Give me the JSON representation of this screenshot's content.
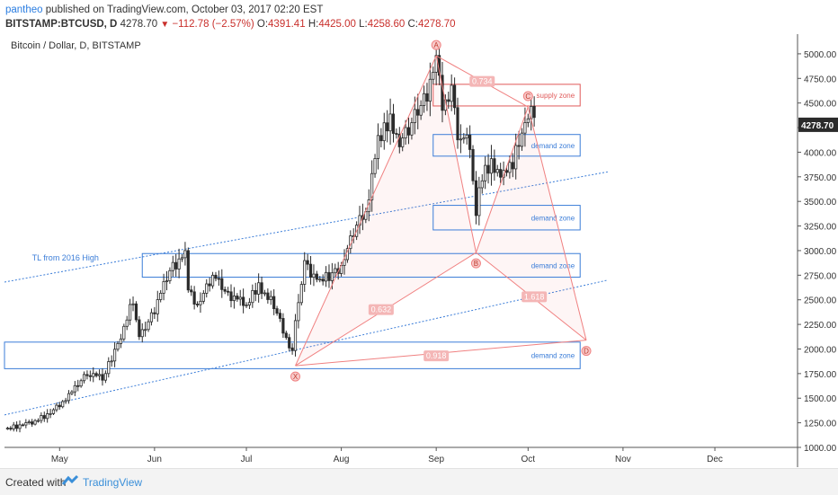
{
  "header": {
    "user": "pantheo",
    "published": "published on TradingView.com, October 03, 2017 02:20 EST",
    "symbol": "BITSTAMP:BTCUSD, D",
    "last": "4278.70",
    "change": "−112.78 (−2.57%)",
    "open_label": "O:",
    "open": "4391.41",
    "high_label": "H:",
    "high": "4425.00",
    "low_label": "L:",
    "low": "4258.60",
    "close_label": "C:",
    "close": "4278.70"
  },
  "footer": {
    "created_with": "Created with",
    "brand": "TradingView"
  },
  "colors": {
    "up": "#ffffff",
    "down": "#2b2b2b",
    "zone_demand": "#3b7dd8",
    "zone_supply": "#e05a5a",
    "pattern": "#f08080",
    "trendline": "#3b7dd8",
    "price_tag_bg": "#2b2b2b"
  },
  "chart_data": {
    "type": "candlestick",
    "title": "Bitcoin / Dollar, D, BITSTAMP",
    "x_start": "2017-04-13",
    "x_end": "2017-12-28",
    "ylim": [
      1000,
      5200
    ],
    "y_ticks": [
      1000,
      1250,
      1500,
      1750,
      2000,
      2250,
      2500,
      2750,
      3000,
      3250,
      3500,
      3750,
      4000,
      4250,
      4500,
      4750,
      5000
    ],
    "y_tick_labels": [
      "1000.00",
      "1250.00",
      "1500.00",
      "1750.00",
      "2000.00",
      "2250.00",
      "2500.00",
      "2750.00",
      "3000.00",
      "3250.00",
      "3500.00",
      "3750.00",
      "4000.00",
      "4250.00",
      "4500.00",
      "4750.00",
      "5000.00"
    ],
    "x_ticks": [
      {
        "date": "2017-05-01",
        "label": "May"
      },
      {
        "date": "2017-06-01",
        "label": "Jun"
      },
      {
        "date": "2017-07-01",
        "label": "Jul"
      },
      {
        "date": "2017-08-01",
        "label": "Aug"
      },
      {
        "date": "2017-09-01",
        "label": "Sep"
      },
      {
        "date": "2017-10-01",
        "label": "Oct"
      },
      {
        "date": "2017-11-01",
        "label": "Nov"
      },
      {
        "date": "2017-12-01",
        "label": "Dec"
      }
    ],
    "last_price_label": "4278.70",
    "last_price": 4278.7,
    "close_path": [
      [
        "2017-04-13",
        1190
      ],
      [
        "2017-04-20",
        1230
      ],
      [
        "2017-04-27",
        1330
      ],
      [
        "2017-05-04",
        1520
      ],
      [
        "2017-05-10",
        1760
      ],
      [
        "2017-05-15",
        1700
      ],
      [
        "2017-05-20",
        2050
      ],
      [
        "2017-05-25",
        2500
      ],
      [
        "2017-05-27",
        2100
      ],
      [
        "2017-06-01",
        2400
      ],
      [
        "2017-06-06",
        2800
      ],
      [
        "2017-06-11",
        2950
      ],
      [
        "2017-06-12",
        2600
      ],
      [
        "2017-06-15",
        2450
      ],
      [
        "2017-06-20",
        2750
      ],
      [
        "2017-06-25",
        2550
      ],
      [
        "2017-07-01",
        2450
      ],
      [
        "2017-07-05",
        2650
      ],
      [
        "2017-07-10",
        2450
      ],
      [
        "2017-07-16",
        1950
      ],
      [
        "2017-07-17",
        2250
      ],
      [
        "2017-07-20",
        2850
      ],
      [
        "2017-07-24",
        2700
      ],
      [
        "2017-07-29",
        2750
      ],
      [
        "2017-08-01",
        2850
      ],
      [
        "2017-08-05",
        3200
      ],
      [
        "2017-08-09",
        3400
      ],
      [
        "2017-08-13",
        4100
      ],
      [
        "2017-08-17",
        4350
      ],
      [
        "2017-08-20",
        4100
      ],
      [
        "2017-08-24",
        4300
      ],
      [
        "2017-08-29",
        4600
      ],
      [
        "2017-09-01",
        4900
      ],
      [
        "2017-09-03",
        4500
      ],
      [
        "2017-09-06",
        4600
      ],
      [
        "2017-09-08",
        4200
      ],
      [
        "2017-09-12",
        4100
      ],
      [
        "2017-09-14",
        3300
      ],
      [
        "2017-09-15",
        3700
      ],
      [
        "2017-09-19",
        3900
      ],
      [
        "2017-09-23",
        3750
      ],
      [
        "2017-09-26",
        3900
      ],
      [
        "2017-09-29",
        4200
      ],
      [
        "2017-10-02",
        4391
      ],
      [
        "2017-10-03",
        4278.7
      ]
    ],
    "zones": [
      {
        "label": "supply zone",
        "kind": "supply",
        "from": "2017-08-31",
        "to": "2017-10-18",
        "low": 4470,
        "high": 4690
      },
      {
        "label": "demand zone",
        "kind": "demand",
        "from": "2017-08-31",
        "to": "2017-10-18",
        "low": 3960,
        "high": 4180
      },
      {
        "label": "demand zone",
        "kind": "demand",
        "from": "2017-08-31",
        "to": "2017-10-18",
        "low": 3210,
        "high": 3460
      },
      {
        "label": "demand zone",
        "kind": "demand",
        "from": "2017-05-28",
        "to": "2017-10-18",
        "low": 2730,
        "high": 2970
      },
      {
        "label": "demand zone",
        "kind": "demand",
        "from": "2017-04-13",
        "to": "2017-10-18",
        "low": 1800,
        "high": 2070
      }
    ],
    "pattern_points": [
      {
        "label": "X",
        "date": "2017-07-17",
        "value": 1830
      },
      {
        "label": "A",
        "date": "2017-09-01",
        "value": 4980
      },
      {
        "label": "B",
        "date": "2017-09-14",
        "value": 2980
      },
      {
        "label": "C",
        "date": "2017-10-01",
        "value": 4460
      },
      {
        "label": "D",
        "date": "2017-10-20",
        "value": 2090
      }
    ],
    "ratios": [
      {
        "label": "0.734",
        "date": "2017-09-16",
        "value": 4720
      },
      {
        "label": "0.632",
        "date": "2017-08-14",
        "value": 2400
      },
      {
        "label": "1.618",
        "date": "2017-10-03",
        "value": 2530
      },
      {
        "label": "0.918",
        "date": "2017-09-01",
        "value": 1930
      }
    ],
    "trendlines": [
      {
        "label": "TL from 2016 High",
        "from": [
          "2017-04-13",
          2680
        ],
        "to": [
          "2017-10-27",
          3800
        ]
      },
      {
        "label": "",
        "from": [
          "2017-04-13",
          1330
        ],
        "to": [
          "2017-10-27",
          2700
        ]
      }
    ],
    "tl_label": {
      "text": "TL from 2016 High",
      "date": "2017-04-22",
      "value": 2900
    }
  }
}
